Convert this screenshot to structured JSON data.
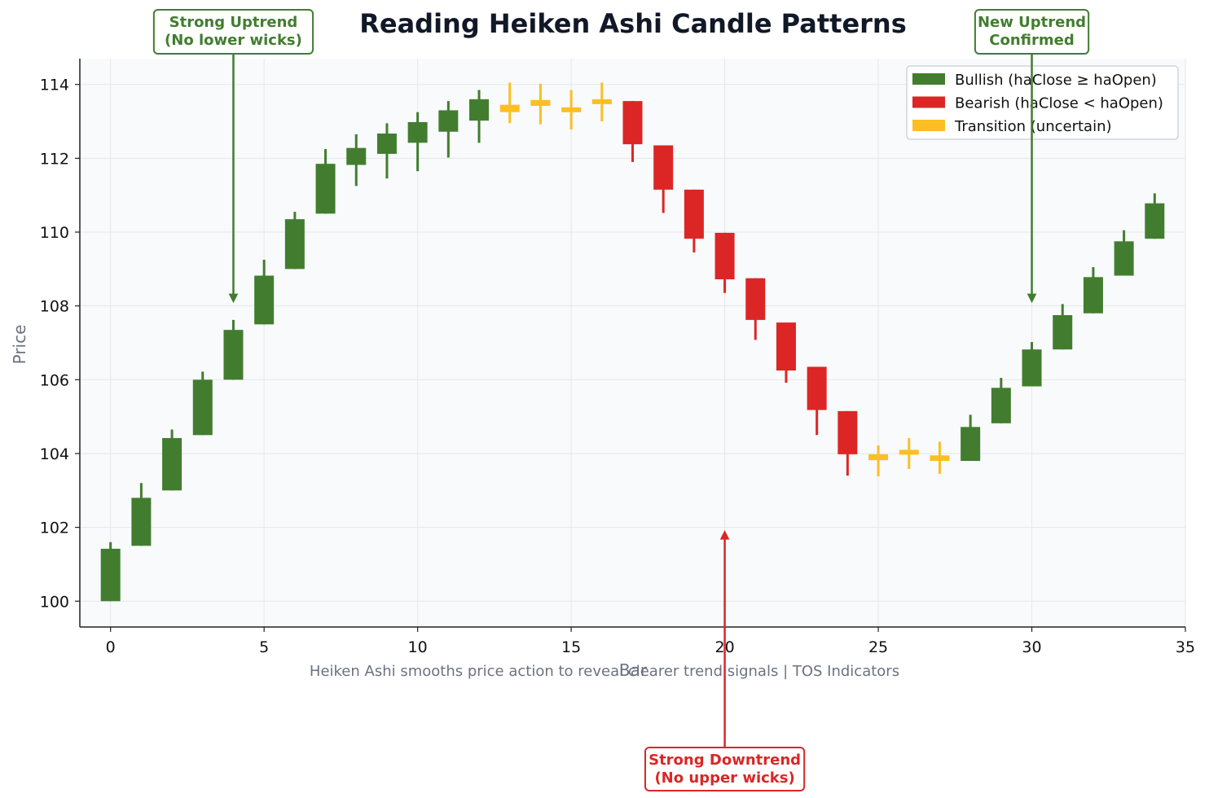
{
  "chart_data": {
    "type": "candlestick",
    "title": "Reading Heiken Ashi Candle Patterns",
    "xlabel": "Bar",
    "ylabel": "Price",
    "caption": "Heiken Ashi smooths price action to reveal clearer trend signals | TOS Indicators",
    "xlim": [
      -1,
      35
    ],
    "ylim": [
      99.3,
      114.7
    ],
    "x_ticks": [
      0,
      5,
      10,
      15,
      20,
      25,
      30,
      35
    ],
    "y_ticks": [
      100,
      102,
      104,
      106,
      108,
      110,
      112,
      114
    ],
    "grid": true,
    "legend_position": "top-right",
    "colors": {
      "bullish": "#427d2f",
      "bearish": "#dc2626",
      "transition": "#fbbf24",
      "plot_bg": "#f8fafc",
      "grid": "#e5e7eb",
      "title": "#111827",
      "axis": "#222222"
    },
    "legend": [
      {
        "label": "Bullish (haClose ≥ haOpen)",
        "color": "#427d2f"
      },
      {
        "label": "Bearish (haClose < haOpen)",
        "color": "#dc2626"
      },
      {
        "label": "Transition (uncertain)",
        "color": "#fbbf24"
      }
    ],
    "annotations": [
      {
        "text_lines": [
          "Strong Uptrend",
          "(No lower wicks)"
        ],
        "color": "#427d2f",
        "box_anchor_x": 4,
        "arrow_to": {
          "x": 4,
          "y": 108.1
        },
        "placement": "above-plot"
      },
      {
        "text_lines": [
          "Strong Downtrend",
          "(No upper wicks)"
        ],
        "color": "#dc2626",
        "box_anchor_x": 20,
        "arrow_to": {
          "x": 20,
          "y": 101.9
        },
        "placement": "below-plot"
      },
      {
        "text_lines": [
          "New Uptrend",
          "Confirmed"
        ],
        "color": "#427d2f",
        "box_anchor_x": 30,
        "arrow_to": {
          "x": 30,
          "y": 108.1
        },
        "placement": "above-plot"
      }
    ],
    "candles": [
      {
        "x": 0,
        "open": 100.0,
        "close": 101.42,
        "high": 101.6,
        "low": 100.0,
        "type": "bullish"
      },
      {
        "x": 1,
        "open": 101.5,
        "close": 102.8,
        "high": 103.2,
        "low": 101.5,
        "type": "bullish"
      },
      {
        "x": 2,
        "open": 103.0,
        "close": 104.42,
        "high": 104.65,
        "low": 103.0,
        "type": "bullish"
      },
      {
        "x": 3,
        "open": 104.5,
        "close": 106.0,
        "high": 106.22,
        "low": 104.5,
        "type": "bullish"
      },
      {
        "x": 4,
        "open": 106.0,
        "close": 107.35,
        "high": 107.62,
        "low": 106.0,
        "type": "bullish"
      },
      {
        "x": 5,
        "open": 107.5,
        "close": 108.82,
        "high": 109.25,
        "low": 107.5,
        "type": "bullish"
      },
      {
        "x": 6,
        "open": 109.0,
        "close": 110.35,
        "high": 110.55,
        "low": 109.0,
        "type": "bullish"
      },
      {
        "x": 7,
        "open": 110.5,
        "close": 111.85,
        "high": 112.25,
        "low": 110.5,
        "type": "bullish"
      },
      {
        "x": 8,
        "open": 111.82,
        "close": 112.28,
        "high": 112.65,
        "low": 111.25,
        "type": "bullish"
      },
      {
        "x": 9,
        "open": 112.12,
        "close": 112.67,
        "high": 112.95,
        "low": 111.45,
        "type": "bullish"
      },
      {
        "x": 10,
        "open": 112.42,
        "close": 112.98,
        "high": 113.25,
        "low": 111.65,
        "type": "bullish"
      },
      {
        "x": 11,
        "open": 112.72,
        "close": 113.3,
        "high": 113.55,
        "low": 112.02,
        "type": "bullish"
      },
      {
        "x": 12,
        "open": 113.02,
        "close": 113.6,
        "high": 113.85,
        "low": 112.42,
        "type": "bullish"
      },
      {
        "x": 13,
        "open": 113.25,
        "close": 113.45,
        "high": 114.05,
        "low": 112.95,
        "type": "transition"
      },
      {
        "x": 14,
        "open": 113.42,
        "close": 113.58,
        "high": 114.02,
        "low": 112.92,
        "type": "transition"
      },
      {
        "x": 15,
        "open": 113.25,
        "close": 113.38,
        "high": 113.85,
        "low": 112.78,
        "type": "transition"
      },
      {
        "x": 16,
        "open": 113.5,
        "close": 113.6,
        "high": 114.05,
        "low": 113.0,
        "type": "transition"
      },
      {
        "x": 17,
        "open": 113.55,
        "close": 112.38,
        "high": 113.55,
        "low": 111.9,
        "type": "bearish"
      },
      {
        "x": 18,
        "open": 112.35,
        "close": 111.15,
        "high": 112.35,
        "low": 110.52,
        "type": "bearish"
      },
      {
        "x": 19,
        "open": 111.15,
        "close": 109.82,
        "high": 111.15,
        "low": 109.45,
        "type": "bearish"
      },
      {
        "x": 20,
        "open": 109.98,
        "close": 108.72,
        "high": 109.98,
        "low": 108.35,
        "type": "bearish"
      },
      {
        "x": 21,
        "open": 108.75,
        "close": 107.62,
        "high": 108.75,
        "low": 107.08,
        "type": "bearish"
      },
      {
        "x": 22,
        "open": 107.55,
        "close": 106.25,
        "high": 107.55,
        "low": 105.92,
        "type": "bearish"
      },
      {
        "x": 23,
        "open": 106.35,
        "close": 105.18,
        "high": 106.35,
        "low": 104.5,
        "type": "bearish"
      },
      {
        "x": 24,
        "open": 105.15,
        "close": 103.98,
        "high": 105.15,
        "low": 103.4,
        "type": "bearish"
      },
      {
        "x": 25,
        "open": 103.98,
        "close": 103.82,
        "high": 104.22,
        "low": 103.38,
        "type": "transition"
      },
      {
        "x": 26,
        "open": 104.02,
        "close": 104.1,
        "high": 104.42,
        "low": 103.58,
        "type": "transition"
      },
      {
        "x": 27,
        "open": 103.95,
        "close": 103.8,
        "high": 104.32,
        "low": 103.45,
        "type": "transition"
      },
      {
        "x": 28,
        "open": 103.8,
        "close": 104.72,
        "high": 105.05,
        "low": 103.8,
        "type": "bullish"
      },
      {
        "x": 29,
        "open": 104.82,
        "close": 105.78,
        "high": 106.05,
        "low": 104.82,
        "type": "bullish"
      },
      {
        "x": 30,
        "open": 105.82,
        "close": 106.82,
        "high": 107.02,
        "low": 105.82,
        "type": "bullish"
      },
      {
        "x": 31,
        "open": 106.82,
        "close": 107.75,
        "high": 108.05,
        "low": 106.82,
        "type": "bullish"
      },
      {
        "x": 32,
        "open": 107.8,
        "close": 108.78,
        "high": 109.05,
        "low": 107.8,
        "type": "bullish"
      },
      {
        "x": 33,
        "open": 108.82,
        "close": 109.75,
        "high": 110.05,
        "low": 108.82,
        "type": "bullish"
      },
      {
        "x": 34,
        "open": 109.82,
        "close": 110.78,
        "high": 111.05,
        "low": 109.82,
        "type": "bullish"
      }
    ]
  }
}
